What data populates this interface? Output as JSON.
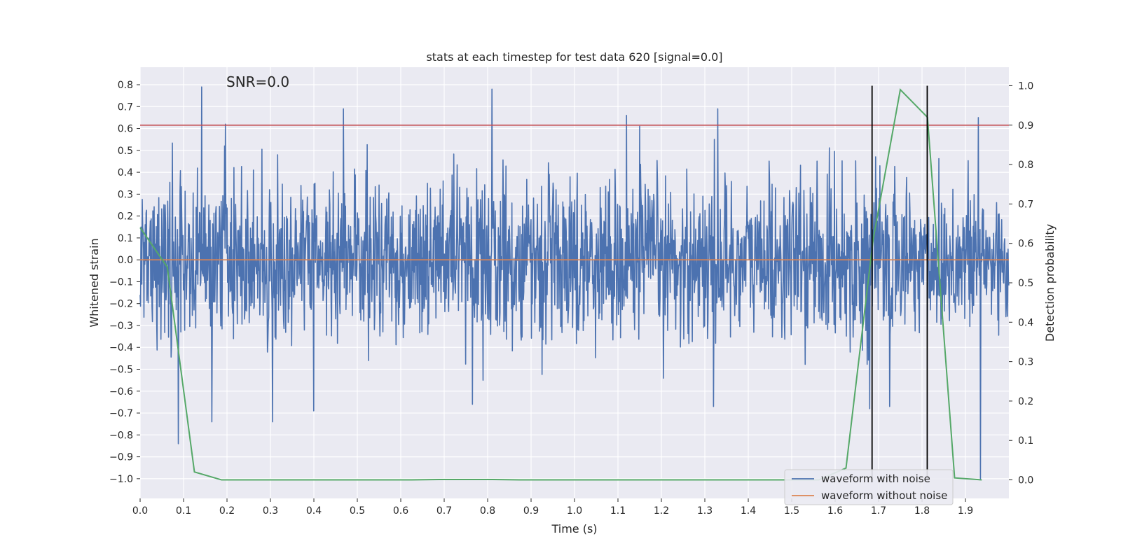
{
  "chart_data": {
    "type": "line",
    "title": "stats at each timestep for test data 620 [signal=0.0]",
    "annotation": "SNR=0.0",
    "xlabel": "Time (s)",
    "ylabel": "Whitened strain",
    "ylabel_right": "Detection probability",
    "xlim": [
      0.0,
      2.0
    ],
    "ylim": [
      -1.09,
      0.88
    ],
    "ylim_right": [
      -0.047,
      1.047
    ],
    "x_ticks": [
      0.0,
      0.1,
      0.2,
      0.3,
      0.4,
      0.5,
      0.6,
      0.7,
      0.8,
      0.9,
      1.0,
      1.1,
      1.2,
      1.3,
      1.4,
      1.5,
      1.6,
      1.7,
      1.8,
      1.9
    ],
    "x_tick_labels": [
      "0.0",
      "0.1",
      "0.2",
      "0.3",
      "0.4",
      "0.5",
      "0.6",
      "0.7",
      "0.8",
      "0.9",
      "1.0",
      "1.1",
      "1.2",
      "1.3",
      "1.4",
      "1.5",
      "1.6",
      "1.7",
      "1.8",
      "1.9"
    ],
    "y_ticks": [
      0.8,
      0.7,
      0.6,
      0.5,
      0.4,
      0.3,
      0.2,
      0.1,
      0.0,
      -0.1,
      -0.2,
      -0.3,
      -0.4,
      -0.5,
      -0.6,
      -0.7,
      -0.8,
      -0.9,
      -1.0
    ],
    "y_tick_labels": [
      "0.8",
      "0.7",
      "0.6",
      "0.5",
      "0.4",
      "0.3",
      "0.2",
      "0.1",
      "0.0",
      "−0.1",
      "−0.2",
      "−0.3",
      "−0.4",
      "−0.5",
      "−0.6",
      "−0.7",
      "−0.8",
      "−0.9",
      "−1.0"
    ],
    "y_ticks_right": [
      1.0,
      0.9,
      0.8,
      0.7,
      0.6,
      0.5,
      0.4,
      0.3,
      0.2,
      0.1,
      0.0
    ],
    "y_tick_labels_right": [
      "1.0",
      "0.9",
      "0.8",
      "0.7",
      "0.6",
      "0.5",
      "0.4",
      "0.3",
      "0.2",
      "0.1",
      "0.0"
    ],
    "grid": true,
    "threshold": {
      "value": 0.9,
      "axis": "right",
      "color": "#c44e52"
    },
    "vertical_markers": [
      1.685,
      1.812
    ],
    "noisy_waveform": {
      "name": "waveform with noise",
      "color": "#4c72b0",
      "sample_count": 2048,
      "peaks": [
        {
          "x": 0.142,
          "y": 0.79
        },
        {
          "x": 0.196,
          "y": 0.62
        },
        {
          "x": 0.468,
          "y": 0.69
        },
        {
          "x": 0.81,
          "y": 0.78
        },
        {
          "x": 1.12,
          "y": 0.66
        },
        {
          "x": 1.15,
          "y": 0.61
        },
        {
          "x": 1.33,
          "y": 0.69
        },
        {
          "x": 1.93,
          "y": 0.65
        },
        {
          "x": 0.088,
          "y": -0.84
        },
        {
          "x": 0.165,
          "y": -0.74
        },
        {
          "x": 0.305,
          "y": -0.74
        },
        {
          "x": 0.4,
          "y": -0.69
        },
        {
          "x": 0.765,
          "y": -0.66
        },
        {
          "x": 1.32,
          "y": -0.67
        },
        {
          "x": 1.68,
          "y": -0.68
        },
        {
          "x": 1.725,
          "y": -0.67
        },
        {
          "x": 1.935,
          "y": -1.0
        }
      ]
    },
    "clean_waveform": {
      "name": "waveform without noise",
      "color": "#dd8452",
      "x": [
        0.0,
        2.0
      ],
      "y": [
        0.0,
        0.0
      ]
    },
    "detection_probability": {
      "color": "#55a868",
      "x": [
        0.0,
        0.0625,
        0.125,
        0.1875,
        0.25,
        0.3125,
        0.375,
        0.4375,
        0.5,
        0.5625,
        0.625,
        0.6875,
        0.75,
        0.8125,
        0.875,
        0.9375,
        1.0,
        1.0625,
        1.125,
        1.1875,
        1.25,
        1.3125,
        1.375,
        1.4375,
        1.5,
        1.5625,
        1.625,
        1.6875,
        1.75,
        1.8125,
        1.875,
        1.9375
      ],
      "y": [
        0.64,
        0.54,
        0.02,
        0.0,
        0.0,
        0.0,
        0.0,
        0.0,
        0.0,
        0.0,
        0.0,
        0.001,
        0.001,
        0.001,
        0.0,
        0.0,
        0.0,
        0.0,
        0.0,
        0.0,
        0.0,
        0.0,
        0.0,
        0.0,
        0.0,
        0.0,
        0.03,
        0.61,
        0.99,
        0.92,
        0.005,
        0.0
      ]
    },
    "legend": {
      "position": "lower-right",
      "entries": [
        "waveform with noise",
        "waveform without noise"
      ]
    }
  }
}
